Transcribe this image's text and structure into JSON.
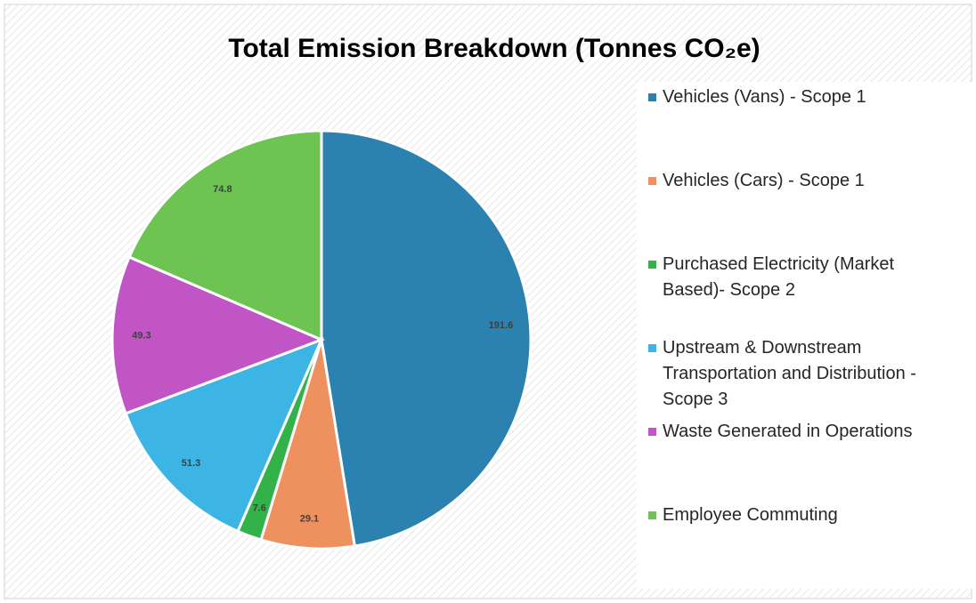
{
  "chart_data": {
    "type": "pie",
    "title": "Total Emission Breakdown (Tonnes CO₂e)",
    "categories": [
      "Vehicles (Vans) - Scope 1",
      "Vehicles (Cars) - Scope 1",
      "Purchased Electricity (Market Based)- Scope 2",
      "Upstream & Downstream Transportation and Distribution - Scope 3",
      "Waste Generated in Operations",
      "Employee Commuting"
    ],
    "values": [
      191.6,
      29.1,
      7.6,
      51.3,
      49.3,
      74.8
    ],
    "colors": [
      "#2b82b0",
      "#ef915f",
      "#34b24a",
      "#3db5e4",
      "#c255c6",
      "#6ec452"
    ],
    "legend": "right"
  }
}
